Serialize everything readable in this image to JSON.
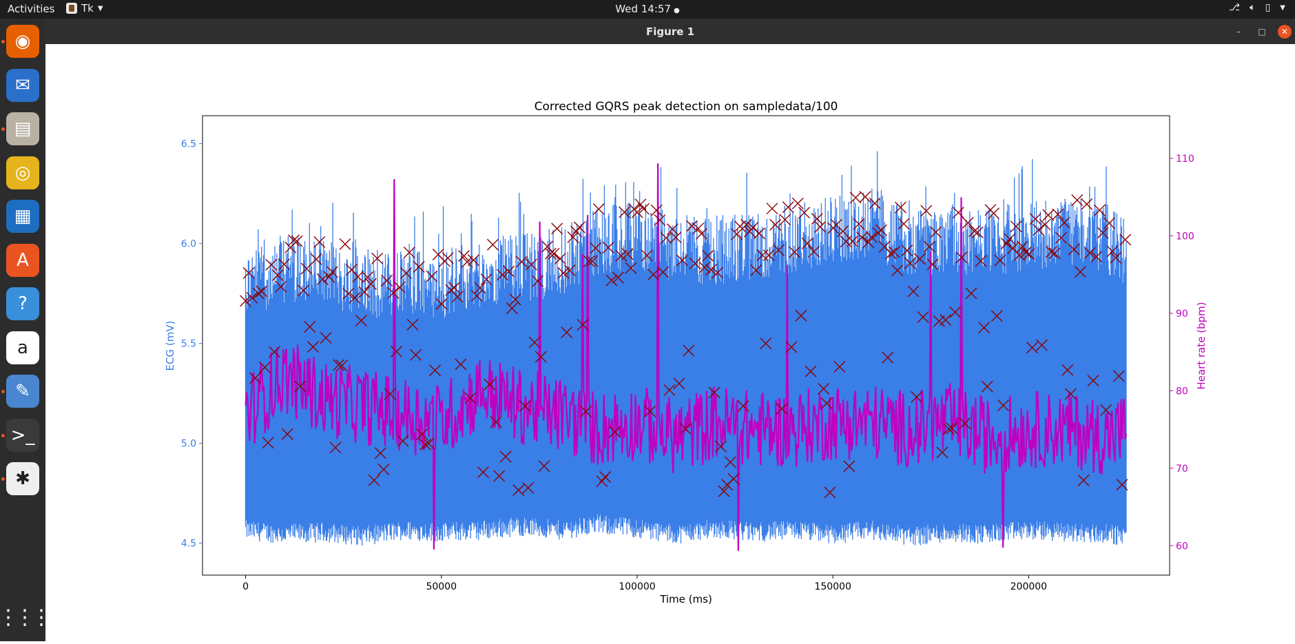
{
  "topbar": {
    "activities": "Activities",
    "app_name": "Tk",
    "clock": "Wed 14:57",
    "tray_icons": [
      "network-icon",
      "volume-icon",
      "battery-icon",
      "power-menu-icon"
    ]
  },
  "dock": {
    "items": [
      {
        "name": "firefox-icon",
        "color": "#e66000",
        "running": true
      },
      {
        "name": "thunderbird-icon",
        "color": "#2a6fc9",
        "running": false
      },
      {
        "name": "files-icon",
        "color": "#b9b1a4",
        "running": true
      },
      {
        "name": "rhythmbox-icon",
        "color": "#e5b31c",
        "running": false
      },
      {
        "name": "writer-icon",
        "color": "#1d6ec1",
        "running": false
      },
      {
        "name": "software-center-icon",
        "color": "#e95420",
        "running": false
      },
      {
        "name": "help-icon",
        "color": "#3a8fdb",
        "running": false
      },
      {
        "name": "amazon-icon",
        "color": "#ffffff",
        "running": false
      },
      {
        "name": "text-editor-icon",
        "color": "#4a86cf",
        "running": true
      },
      {
        "name": "terminal-icon",
        "color": "#3a3a3a",
        "running": true
      },
      {
        "name": "tk-app-icon",
        "color": "#efefef",
        "running": true
      }
    ],
    "show_apps_icon": "grid-icon"
  },
  "window": {
    "title": "Figure 1",
    "controls": [
      "minimize-icon",
      "maximize-icon",
      "close-icon"
    ],
    "close_color": "#e95420"
  },
  "chart_data": {
    "type": "line",
    "title": "Corrected GQRS peak detection on sampledata/100",
    "xlabel": "Time (ms)",
    "ylabel_left": "ECG (mV)",
    "ylabel_right": "Heart rate (bpm)",
    "xlim": [
      -11000,
      236000
    ],
    "ylim_left": [
      4.34,
      6.64
    ],
    "ylim_right": [
      56.2,
      115.5
    ],
    "xticks": [
      0,
      50000,
      100000,
      150000,
      200000
    ],
    "yticks_left": [
      4.5,
      5.0,
      5.5,
      6.0,
      6.5
    ],
    "yticks_right": [
      60,
      70,
      80,
      90,
      100,
      110
    ],
    "grid": false,
    "colors": {
      "ecg": "#3a7ee8",
      "peaks": "#8b0000",
      "heart_rate": "#c000c0",
      "left_axis": "#3a7ee8",
      "right_axis": "#c000c0"
    },
    "series": [
      {
        "kind": "ecg_envelope",
        "x": [
          0,
          10000,
          20000,
          30000,
          40000,
          50000,
          60000,
          70000,
          80000,
          90000,
          100000,
          110000,
          120000,
          130000,
          140000,
          150000,
          160000,
          170000,
          180000,
          190000,
          200000,
          210000,
          220000,
          225000
        ],
        "lower": [
          4.55,
          4.53,
          4.54,
          4.52,
          4.55,
          4.54,
          4.55,
          4.57,
          4.55,
          4.58,
          4.56,
          4.53,
          4.56,
          4.54,
          4.55,
          4.53,
          4.55,
          4.52,
          4.54,
          4.53,
          4.55,
          4.54,
          4.53,
          4.52
        ],
        "upper": [
          5.98,
          6.05,
          6.02,
          5.98,
          5.96,
          5.97,
          6.02,
          6.05,
          6.08,
          6.18,
          6.22,
          6.15,
          6.14,
          6.16,
          6.2,
          6.24,
          6.28,
          6.17,
          6.2,
          6.18,
          6.22,
          6.23,
          6.2,
          6.12
        ]
      },
      {
        "name": "Heart rate",
        "kind": "heart_rate",
        "x": [
          0,
          10000,
          20000,
          30000,
          40000,
          50000,
          60000,
          70000,
          80000,
          90000,
          100000,
          110000,
          120000,
          130000,
          140000,
          150000,
          160000,
          170000,
          180000,
          190000,
          200000,
          210000,
          220000,
          225000
        ],
        "y": [
          77,
          82,
          79,
          78,
          77,
          76,
          80,
          78,
          77,
          75,
          76,
          74,
          76,
          75,
          75,
          76,
          76,
          75,
          76,
          74,
          75,
          75,
          74,
          75
        ]
      }
    ]
  }
}
